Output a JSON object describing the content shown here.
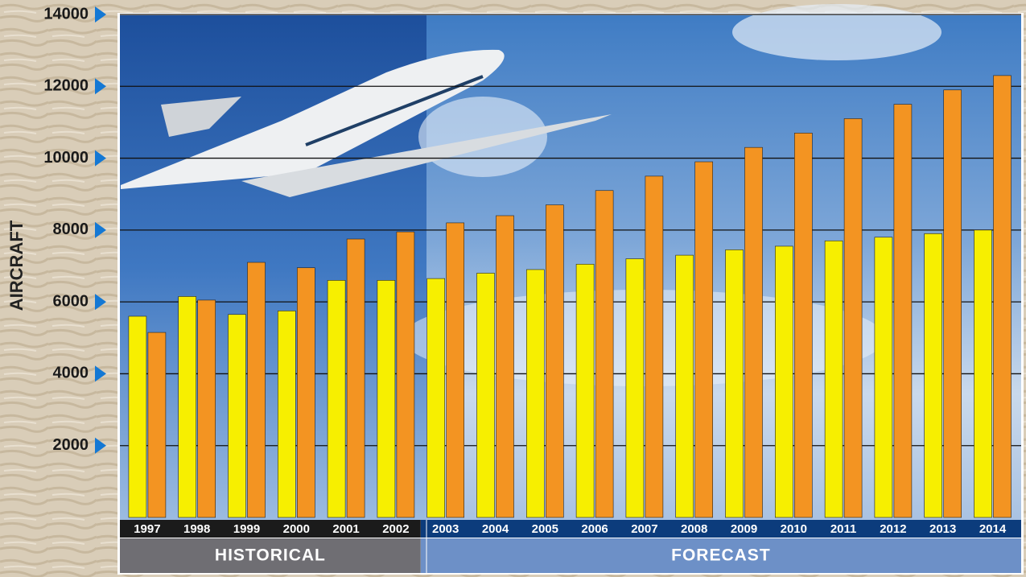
{
  "chart_data": {
    "type": "bar",
    "y_axis_label": "AIRCRAFT",
    "groups": [
      {
        "label": "HISTORICAL",
        "categories": [
          "1997",
          "1998",
          "1999",
          "2000",
          "2001",
          "2002"
        ]
      },
      {
        "label": "FORECAST",
        "categories": [
          "2003",
          "2004",
          "2005",
          "2006",
          "2007",
          "2008",
          "2009",
          "2010",
          "2011",
          "2012",
          "2013",
          "2014"
        ]
      }
    ],
    "series": [
      {
        "color": "#f7ef00",
        "values": [
          5600,
          6150,
          5650,
          5750,
          6600,
          6600,
          6650,
          6800,
          6900,
          7050,
          7200,
          7300,
          7450,
          7550,
          7700,
          7800,
          7900,
          8000
        ]
      },
      {
        "color": "#f39422",
        "values": [
          5150,
          6050,
          7100,
          6950,
          7750,
          7950,
          8200,
          8400,
          8700,
          9100,
          9500,
          9900,
          10300,
          10700,
          11100,
          11500,
          11900,
          12300
        ]
      }
    ],
    "ylim": [
      0,
      14000
    ],
    "yticks": [
      2000,
      4000,
      6000,
      8000,
      10000,
      12000,
      14000
    ],
    "grid": true
  }
}
